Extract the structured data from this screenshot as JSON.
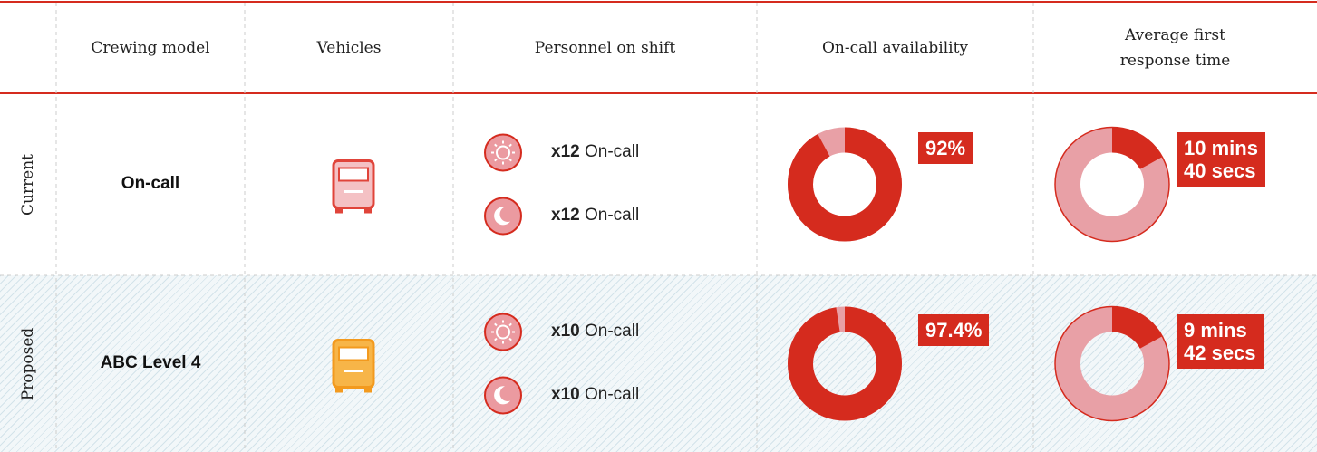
{
  "header": {
    "columns": [
      "Crewing model",
      "Vehicles",
      "Personnel on shift",
      "On-call availability",
      "Average first response time"
    ]
  },
  "rows": [
    {
      "label": "Current",
      "crewing_model": "On-call",
      "day_shift": {
        "count": "x12",
        "role": "On-call"
      },
      "night_shift": {
        "count": "x12",
        "role": "On-call"
      },
      "availability": 92,
      "availability_label": "92%",
      "response_time": [
        "10 mins",
        "40 secs"
      ],
      "vehicle_color": "#e0443a"
    },
    {
      "label": "Proposed",
      "crewing_model": "ABC Level 4",
      "day_shift": {
        "count": "x10",
        "role": "On-call"
      },
      "night_shift": {
        "count": "x10",
        "role": "On-call"
      },
      "availability": 97.4,
      "availability_label": "97.4%",
      "response_time": [
        "9 mins",
        "42 secs"
      ],
      "vehicle_color": "#f39a1e"
    }
  ]
}
